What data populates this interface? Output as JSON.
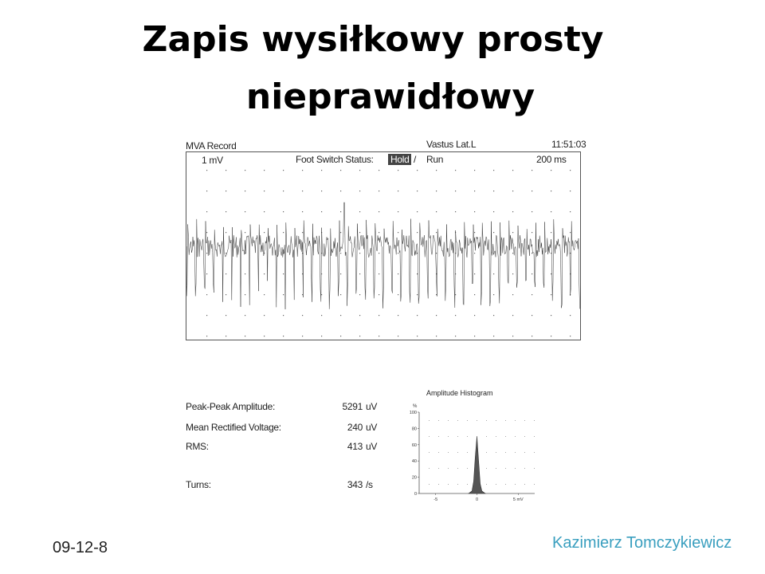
{
  "slide": {
    "title_line1": "Zapis wysiłkowy prosty",
    "title_line2": "nieprawidłowy",
    "date": "09-12-8",
    "author": "Kazimierz Tomczykiewicz",
    "author_color": "#3a9fbf"
  },
  "emg": {
    "record_label": "MVA Record",
    "muscle": "Vastus Lat.L",
    "time": "11:51:03",
    "scale": "1 mV",
    "foot_switch_label": "Foot Switch Status:",
    "hold_label": "Hold",
    "separator": "/",
    "run_label": "Run",
    "timebase": "200 ms"
  },
  "stats": [
    {
      "label": "Peak-Peak Amplitude:",
      "value": "5291",
      "unit": "uV"
    },
    {
      "label": "Mean Rectified Voltage:",
      "value": "240",
      "unit": "uV"
    },
    {
      "label": "RMS:",
      "value": "413",
      "unit": "uV"
    },
    {
      "label": "Turns:",
      "value": "343",
      "unit": "/s"
    }
  ],
  "chart_data": {
    "type": "area",
    "title": "Amplitude Histogram",
    "ylabel": "%",
    "xlabel": "",
    "y_ticks": [
      "100",
      "80",
      "60",
      "40",
      "20",
      "0"
    ],
    "x_ticks": [
      "-5",
      "0",
      "5 mV"
    ],
    "xlim": [
      -7,
      7
    ],
    "ylim": [
      0,
      100
    ],
    "series": [
      {
        "x": [
          -1.0,
          -0.6,
          -0.4,
          -0.2,
          0.0,
          0.2,
          0.4,
          0.6,
          1.0
        ],
        "values": [
          0,
          3,
          15,
          45,
          70,
          40,
          12,
          3,
          0
        ]
      }
    ],
    "fill_color": "#555555"
  }
}
